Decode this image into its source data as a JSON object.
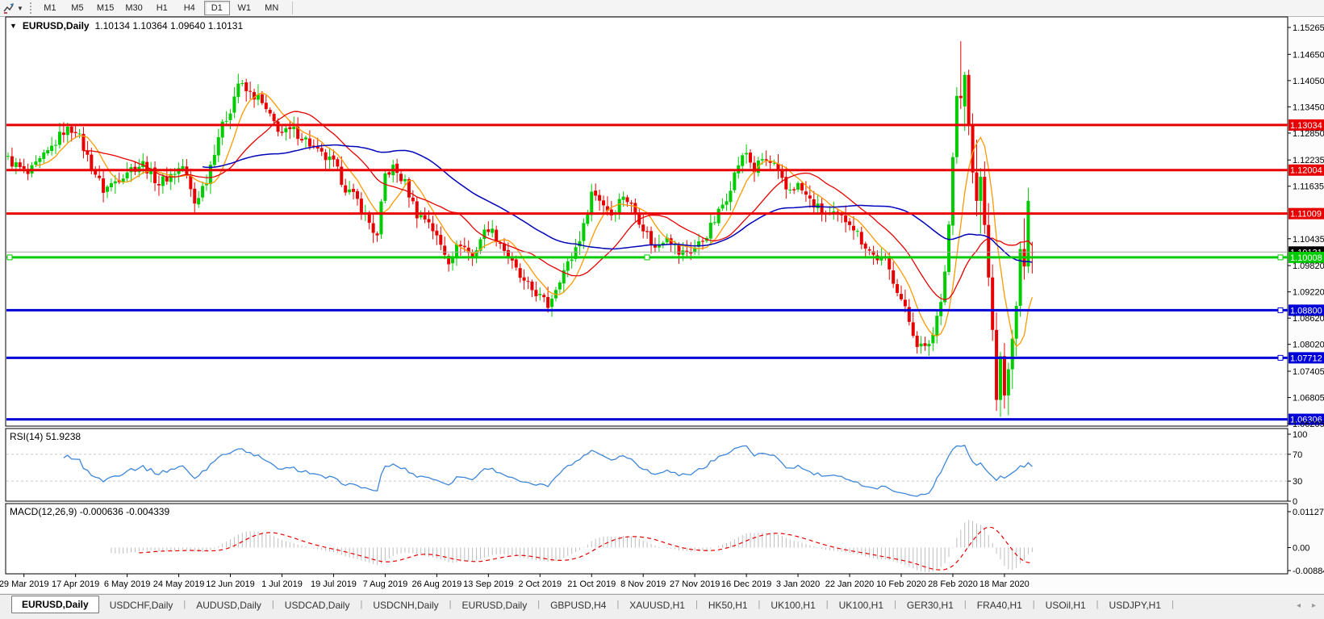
{
  "toolbar": {
    "chart_tool_icon": "chart-cursor-icon",
    "dropdown_icon": "chevron-down-icon",
    "timeframes": [
      {
        "label": "M1",
        "active": false
      },
      {
        "label": "M5",
        "active": false
      },
      {
        "label": "M15",
        "active": false
      },
      {
        "label": "M30",
        "active": false
      },
      {
        "label": "H1",
        "active": false
      },
      {
        "label": "H4",
        "active": false
      },
      {
        "label": "D1",
        "active": true
      },
      {
        "label": "W1",
        "active": false
      },
      {
        "label": "MN",
        "active": false
      }
    ]
  },
  "chart": {
    "symbol": "EURUSD,Daily",
    "ohlc": "1.10134 1.10364 1.09640 1.10131",
    "collapse_icon": "triangle-down-icon"
  },
  "rsi": {
    "label": "RSI(14)",
    "value": "51.9238",
    "axis": [
      "100",
      "70",
      "30",
      "0"
    ]
  },
  "macd": {
    "label": "MACD(12,26,9)",
    "values": "-0.000636 -0.004339",
    "axis": [
      "0.011277",
      "0.00",
      "-0.008845"
    ]
  },
  "tabs": [
    {
      "label": "EURUSD,Daily",
      "active": true
    },
    {
      "label": "USDCHF,Daily",
      "active": false
    },
    {
      "label": "AUDUSD,Daily",
      "active": false
    },
    {
      "label": "USDCAD,Daily",
      "active": false
    },
    {
      "label": "USDCNH,Daily",
      "active": false
    },
    {
      "label": "EURUSD,Daily",
      "active": false
    },
    {
      "label": "GBPUSD,H4",
      "active": false
    },
    {
      "label": "XAUUSD,H1",
      "active": false
    },
    {
      "label": "HK50,H1",
      "active": false
    },
    {
      "label": "UK100,H1",
      "active": false
    },
    {
      "label": "UK100,H1",
      "active": false
    },
    {
      "label": "GER30,H1",
      "active": false
    },
    {
      "label": "FRA40,H1",
      "active": false
    },
    {
      "label": "USOil,H1",
      "active": false
    },
    {
      "label": "USDJPY,H1",
      "active": false
    }
  ],
  "tab_scroll": {
    "left_icon": "◂",
    "right_icon": "▸"
  },
  "colors": {
    "bull": "#00CC00",
    "bear": "#E80000",
    "ma_fast": "#FF9900",
    "ma_mid": "#E80000",
    "ma_slow": "#0000BB",
    "level_red": "#E80000",
    "level_green": "#00CC00",
    "level_blue": "#0000D8",
    "current_line": "#A8A8A8",
    "rsi_line": "#3E86D8",
    "macd_bars": "#BEBEBE",
    "macd_signal": "#E80000"
  },
  "chart_data": {
    "type": "candlestick",
    "symbol": "EURUSD",
    "timeframe": "Daily",
    "current_bar": {
      "open": 1.10134,
      "high": 1.10364,
      "low": 1.0964,
      "close": 1.10131
    },
    "y_range": [
      1.0614,
      1.1549
    ],
    "price_axis_ticks": [
      "1.15265",
      "1.14650",
      "1.14050",
      "1.13450",
      "1.12850",
      "1.12235",
      "1.11635",
      "1.10435",
      "1.09820",
      "1.09220",
      "1.08620",
      "1.08020",
      "1.07405",
      "1.06805",
      "1.06205"
    ],
    "levels": [
      {
        "label": "1.13034",
        "price": 1.13034,
        "type": "resistance",
        "color": "red"
      },
      {
        "label": "1.12004",
        "price": 1.12004,
        "type": "resistance",
        "color": "red"
      },
      {
        "label": "1.11009",
        "price": 1.11009,
        "type": "resistance",
        "color": "red"
      },
      {
        "label": "1.10131",
        "price": 1.10131,
        "type": "current-price",
        "color": "black"
      },
      {
        "label": "1.10008",
        "price": 1.10008,
        "type": "pivot-selected",
        "color": "green",
        "handles": "lmr"
      },
      {
        "label": "1.08800",
        "price": 1.088,
        "type": "support",
        "color": "blue",
        "handles": "r"
      },
      {
        "label": "1.07712",
        "price": 1.07712,
        "type": "support",
        "color": "blue",
        "handles": "r"
      },
      {
        "label": "1.06306",
        "price": 1.06306,
        "type": "support",
        "color": "blue"
      }
    ],
    "x_labels": [
      "29 Mar 2019",
      "17 Apr 2019",
      "6 May 2019",
      "24 May 2019",
      "12 Jun 2019",
      "1 Jul 2019",
      "19 Jul 2019",
      "7 Aug 2019",
      "26 Aug 2019",
      "13 Sep 2019",
      "2 Oct 2019",
      "21 Oct 2019",
      "8 Nov 2019",
      "27 Nov 2019",
      "16 Dec 2019",
      "3 Jan 2020",
      "22 Jan 2020",
      "10 Feb 2020",
      "28 Feb 2020",
      "18 Mar 2020"
    ],
    "close_anchors": [
      [
        0,
        1.1225
      ],
      [
        5,
        1.119
      ],
      [
        10,
        1.124
      ],
      [
        14,
        1.129
      ],
      [
        17,
        1.1295
      ],
      [
        20,
        1.123
      ],
      [
        24,
        1.1155
      ],
      [
        27,
        1.1175
      ],
      [
        30,
        1.12
      ],
      [
        34,
        1.1215
      ],
      [
        38,
        1.117
      ],
      [
        41,
        1.119
      ],
      [
        44,
        1.121
      ],
      [
        47,
        1.1125
      ],
      [
        50,
        1.118
      ],
      [
        53,
        1.128
      ],
      [
        56,
        1.134
      ],
      [
        58,
        1.14
      ],
      [
        60,
        1.138
      ],
      [
        63,
        1.1365
      ],
      [
        66,
        1.132
      ],
      [
        69,
        1.1285
      ],
      [
        72,
        1.129
      ],
      [
        75,
        1.127
      ],
      [
        78,
        1.124
      ],
      [
        82,
        1.1215
      ],
      [
        85,
        1.116
      ],
      [
        88,
        1.113
      ],
      [
        91,
        1.108
      ],
      [
        93,
        1.1045
      ],
      [
        95,
        1.119
      ],
      [
        97,
        1.1205
      ],
      [
        100,
        1.117
      ],
      [
        103,
        1.11
      ],
      [
        106,
        1.1085
      ],
      [
        108,
        1.1045
      ],
      [
        111,
        1.0995
      ],
      [
        114,
        1.1035
      ],
      [
        117,
        1.1
      ],
      [
        119,
        1.1045
      ],
      [
        121,
        1.107
      ],
      [
        124,
        1.1035
      ],
      [
        127,
        1.0985
      ],
      [
        130,
        1.094
      ],
      [
        133,
        1.092
      ],
      [
        136,
        1.089
      ],
      [
        139,
        1.0955
      ],
      [
        142,
        1.1
      ],
      [
        145,
        1.107
      ],
      [
        147,
        1.115
      ],
      [
        149,
        1.1135
      ],
      [
        152,
        1.11
      ],
      [
        155,
        1.1145
      ],
      [
        158,
        1.1105
      ],
      [
        160,
        1.107
      ],
      [
        163,
        1.102
      ],
      [
        166,
        1.1055
      ],
      [
        169,
        1.101
      ],
      [
        172,
        1.1015
      ],
      [
        175,
        1.104
      ],
      [
        178,
        1.1085
      ],
      [
        181,
        1.114
      ],
      [
        184,
        1.1215
      ],
      [
        186,
        1.124
      ],
      [
        188,
        1.12
      ],
      [
        190,
        1.1225
      ],
      [
        193,
        1.121
      ],
      [
        196,
        1.1155
      ],
      [
        199,
        1.1165
      ],
      [
        202,
        1.113
      ],
      [
        205,
        1.1105
      ],
      [
        208,
        1.1095
      ],
      [
        212,
        1.1085
      ],
      [
        215,
        1.104
      ],
      [
        218,
        1.1005
      ],
      [
        221,
        1.099
      ],
      [
        224,
        1.093
      ],
      [
        227,
        1.0855
      ],
      [
        229,
        1.0805
      ],
      [
        231,
        1.079
      ],
      [
        233,
        1.0825
      ],
      [
        235,
        1.091
      ],
      [
        236,
        1.097
      ],
      [
        237,
        1.108
      ],
      [
        238,
        1.123
      ]
    ],
    "tail_candles": [
      [
        1.123,
        1.139,
        1.1215,
        1.137
      ],
      [
        1.137,
        1.1495,
        1.134,
        1.1365
      ],
      [
        1.1346,
        1.1425,
        1.129,
        1.1418
      ],
      [
        1.1418,
        1.143,
        1.128,
        1.1305
      ],
      [
        1.1305,
        1.133,
        1.117,
        1.1195
      ],
      [
        1.1195,
        1.127,
        1.1095,
        1.113
      ],
      [
        1.113,
        1.1205,
        1.1055,
        1.1185
      ],
      [
        1.1185,
        1.122,
        1.1055,
        1.1075
      ],
      [
        1.1075,
        1.1125,
        1.0935,
        1.0955
      ],
      [
        1.0955,
        1.0985,
        1.081,
        1.0835
      ],
      [
        1.0835,
        1.0875,
        1.065,
        1.0675
      ],
      [
        1.0675,
        1.0785,
        1.0636,
        1.0775
      ],
      [
        1.0775,
        1.0805,
        1.0655,
        1.0685
      ],
      [
        1.0685,
        1.076,
        1.064,
        1.0745
      ],
      [
        1.0745,
        1.0835,
        1.07,
        1.0815
      ],
      [
        1.0815,
        1.09,
        1.0775,
        1.089
      ],
      [
        1.089,
        1.1035,
        1.0865,
        1.102
      ],
      [
        1.102,
        1.109,
        1.095,
        1.098
      ],
      [
        1.098,
        1.116,
        1.0965,
        1.113
      ],
      [
        1.10134,
        1.10364,
        1.0964,
        1.10131
      ]
    ],
    "moving_averages": [
      {
        "period": 8,
        "color_key": "ma_fast"
      },
      {
        "period": 20,
        "color_key": "ma_mid"
      },
      {
        "period": 50,
        "color_key": "ma_slow"
      }
    ],
    "indicators": {
      "rsi": {
        "period": 14,
        "last": 51.9238,
        "levels": [
          70,
          30
        ]
      },
      "macd": {
        "fast": 12,
        "slow": 26,
        "signal": 9,
        "last": -0.000636,
        "last_signal": -0.004339,
        "axis_max": 0.011277,
        "axis_min": -0.008845
      }
    }
  }
}
